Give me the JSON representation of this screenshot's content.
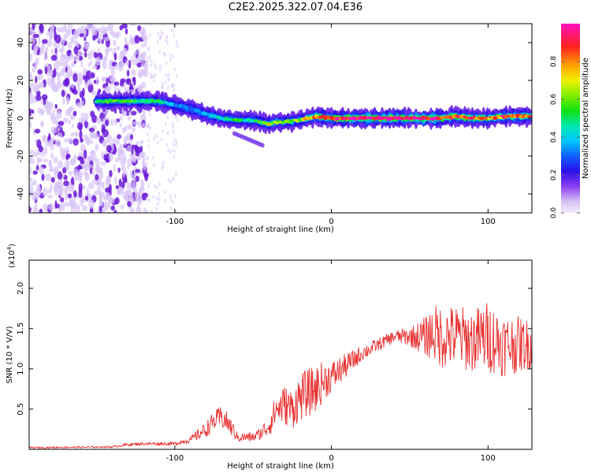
{
  "figure_title": "C2E2.2025.322.07.04.E36",
  "colors": {
    "snr_line": "#e83030",
    "frame": "#000000",
    "background": "#ffffff",
    "noise_light": "#d9c4f6",
    "noise_dark": "#6a1ad8"
  },
  "chart_data": [
    {
      "type": "heatmap",
      "title": "",
      "xlabel": "Height of straight line (km)",
      "ylabel": "Frequency (Hz)",
      "xlim": [
        -193,
        128
      ],
      "ylim": [
        -50,
        50
      ],
      "x_ticks": [
        -100,
        0,
        100
      ],
      "y_ticks": [
        -40,
        -20,
        0,
        20,
        40
      ],
      "x_tick_labels": [
        "-100",
        "0",
        "100"
      ],
      "y_tick_labels": [
        "-40",
        "-20",
        "0",
        "20",
        "40"
      ],
      "colorbar": {
        "label": "Normalized spectral amplitude",
        "range": [
          0,
          1
        ],
        "ticks": [
          0.0,
          0.2,
          0.4,
          0.6,
          0.8
        ],
        "tick_labels": [
          "0.0",
          "0.2",
          "0.4",
          "0.6",
          "0.8"
        ],
        "colormap": "rainbow (lavender-violet-blue-cyan-green-yellow-orange-red-magenta)"
      },
      "signal_ridge": {
        "x": [
          -150,
          -140,
          -130,
          -120,
          -110,
          -100,
          -90,
          -80,
          -70,
          -60,
          -50,
          -45,
          -40,
          -35,
          -30,
          -20,
          -10,
          0,
          10,
          20,
          30,
          40,
          50,
          60,
          70,
          80,
          90,
          100,
          110,
          120,
          128
        ],
        "frequency": [
          9,
          9,
          9,
          9,
          9,
          7,
          5,
          2,
          0,
          -1,
          -1,
          -2,
          -3,
          -2,
          -2,
          -1,
          1,
          0,
          0,
          0,
          0,
          0,
          0,
          0,
          0,
          1,
          0,
          0,
          1,
          1,
          1
        ],
        "peak_amplitude": [
          0.45,
          0.55,
          0.55,
          0.5,
          0.5,
          0.35,
          0.3,
          0.35,
          0.45,
          0.5,
          0.45,
          0.55,
          0.75,
          0.6,
          0.6,
          0.65,
          0.8,
          0.9,
          0.95,
          0.98,
          0.98,
          0.98,
          0.98,
          0.95,
          0.9,
          0.85,
          0.85,
          0.8,
          0.85,
          0.85,
          0.8
        ]
      }
    },
    {
      "type": "line",
      "title": "",
      "xlabel": "Height of straight line (km)",
      "ylabel": "SNR (10 * V/V)",
      "y_exponent_label": "(x10",
      "y_exponent_power": "4",
      "y_exponent_close": ")",
      "xlim": [
        -193,
        128
      ],
      "ylim": [
        0,
        23500
      ],
      "x_ticks": [
        -100,
        0,
        100
      ],
      "y_ticks": [
        5000,
        10000,
        15000,
        20000
      ],
      "x_tick_labels": [
        "-100",
        "0",
        "100"
      ],
      "y_tick_labels": [
        "0.5",
        "1.0",
        "1.5",
        "2.0"
      ],
      "series": [
        {
          "name": "SNR",
          "envelope_x": [
            -193,
            -140,
            -130,
            -120,
            -100,
            -90,
            -80,
            -75,
            -70,
            -65,
            -60,
            -50,
            -45,
            -40,
            -35,
            -30,
            -25,
            -20,
            -15,
            -10,
            -5,
            0,
            10,
            20,
            30,
            40,
            50,
            60,
            65,
            70,
            80,
            90,
            100,
            110,
            120,
            128
          ],
          "envelope_y": [
            200,
            300,
            600,
            700,
            700,
            1200,
            2500,
            3500,
            4000,
            3000,
            1500,
            1500,
            2000,
            3000,
            5000,
            5500,
            5000,
            6500,
            7000,
            7500,
            8500,
            9000,
            10500,
            12000,
            13000,
            14000,
            14000,
            14000,
            14500,
            14000,
            14000,
            13500,
            14000,
            13000,
            13000,
            13000
          ],
          "spread_y": [
            100,
            100,
            200,
            200,
            200,
            400,
            1000,
            1200,
            1500,
            1200,
            600,
            600,
            800,
            1500,
            2000,
            2500,
            2500,
            3000,
            3000,
            3000,
            2500,
            2000,
            1500,
            1000,
            800,
            800,
            1200,
            2500,
            3500,
            4000,
            4000,
            4000,
            4500,
            4000,
            3500,
            3000
          ]
        }
      ]
    }
  ]
}
